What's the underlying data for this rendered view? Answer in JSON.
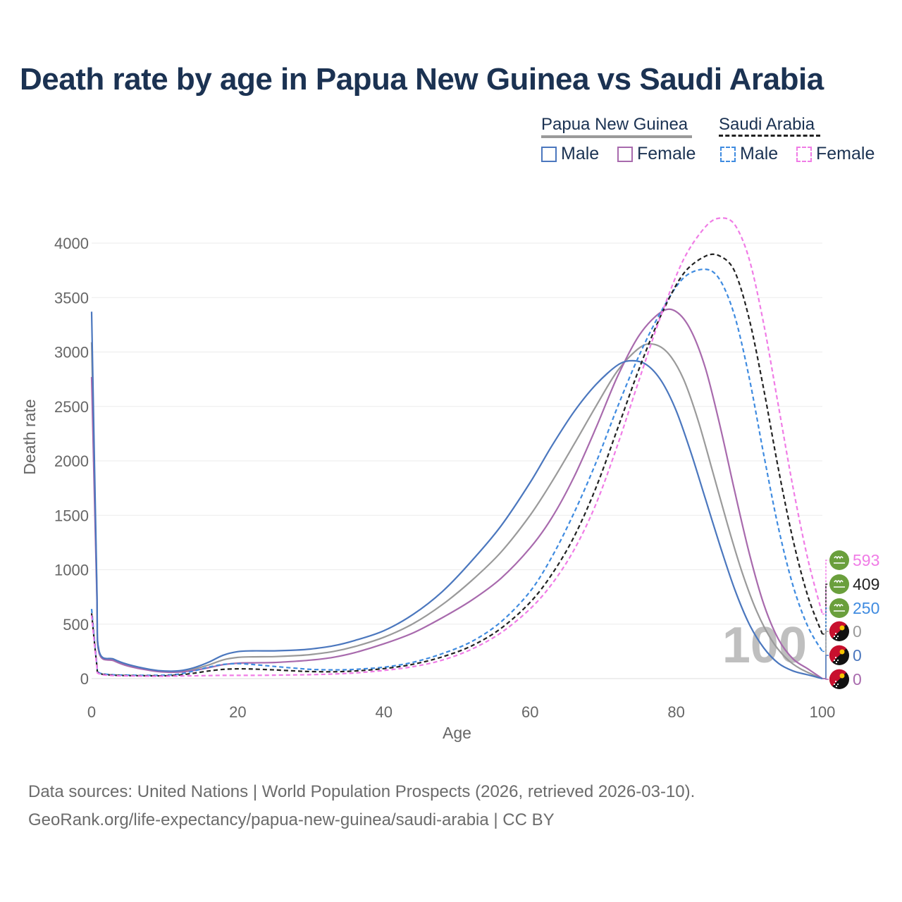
{
  "title": "Death rate by age in Papua New Guinea vs Saudi Arabia",
  "legend": {
    "groups": [
      {
        "label": "Papua New Guinea",
        "bar_color": "#9a9a9a",
        "bar_style": "solid",
        "items": [
          {
            "label": "Male",
            "color": "#4b77be",
            "style": "solid"
          },
          {
            "label": "Female",
            "color": "#a86aad",
            "style": "solid"
          }
        ]
      },
      {
        "label": "Saudi Arabia",
        "bar_color": "#222222",
        "bar_style": "dashed",
        "items": [
          {
            "label": "Male",
            "color": "#3f8be0",
            "style": "dashed"
          },
          {
            "label": "Female",
            "color": "#f07ce6",
            "style": "dashed"
          }
        ]
      }
    ]
  },
  "chart_data": {
    "type": "line",
    "title": "Death rate by age in Papua New Guinea vs Saudi Arabia",
    "xlabel": "Age",
    "ylabel": "Death rate",
    "xlim": [
      0,
      100
    ],
    "ylim": [
      0,
      4300
    ],
    "x_ticks": [
      0,
      20,
      40,
      60,
      80,
      100
    ],
    "y_ticks": [
      0,
      500,
      1000,
      1500,
      2000,
      2500,
      3000,
      3500,
      4000
    ],
    "grid": true,
    "annotation_age": "100",
    "series": [
      {
        "name": "Papua New Guinea Male",
        "color": "#4b77be",
        "dash": "solid",
        "points": [
          [
            0,
            3370
          ],
          [
            0.7,
            900
          ],
          [
            1,
            260
          ],
          [
            3,
            180
          ],
          [
            5,
            130
          ],
          [
            8,
            85
          ],
          [
            10,
            70
          ],
          [
            12,
            72
          ],
          [
            14,
            100
          ],
          [
            16,
            150
          ],
          [
            18,
            215
          ],
          [
            20,
            248
          ],
          [
            22,
            255
          ],
          [
            25,
            255
          ],
          [
            28,
            262
          ],
          [
            30,
            272
          ],
          [
            33,
            300
          ],
          [
            36,
            350
          ],
          [
            40,
            440
          ],
          [
            44,
            590
          ],
          [
            48,
            800
          ],
          [
            52,
            1080
          ],
          [
            56,
            1400
          ],
          [
            60,
            1800
          ],
          [
            63,
            2140
          ],
          [
            66,
            2450
          ],
          [
            69,
            2700
          ],
          [
            72,
            2880
          ],
          [
            74,
            2920
          ],
          [
            76,
            2880
          ],
          [
            78,
            2730
          ],
          [
            80,
            2460
          ],
          [
            82,
            2080
          ],
          [
            84,
            1650
          ],
          [
            86,
            1220
          ],
          [
            88,
            820
          ],
          [
            90,
            500
          ],
          [
            92,
            280
          ],
          [
            94,
            140
          ],
          [
            96,
            70
          ],
          [
            98,
            35
          ],
          [
            100,
            0
          ]
        ],
        "end_label": "0",
        "end_flag": "Papua New Guinea"
      },
      {
        "name": "Papua New Guinea Female",
        "color": "#a86aad",
        "dash": "solid",
        "points": [
          [
            0,
            2770
          ],
          [
            0.7,
            800
          ],
          [
            1,
            240
          ],
          [
            3,
            165
          ],
          [
            5,
            115
          ],
          [
            8,
            75
          ],
          [
            10,
            60
          ],
          [
            12,
            60
          ],
          [
            14,
            75
          ],
          [
            16,
            100
          ],
          [
            18,
            128
          ],
          [
            20,
            142
          ],
          [
            22,
            145
          ],
          [
            25,
            148
          ],
          [
            28,
            160
          ],
          [
            30,
            170
          ],
          [
            33,
            195
          ],
          [
            36,
            238
          ],
          [
            40,
            320
          ],
          [
            44,
            420
          ],
          [
            48,
            560
          ],
          [
            52,
            720
          ],
          [
            56,
            920
          ],
          [
            60,
            1200
          ],
          [
            63,
            1480
          ],
          [
            66,
            1850
          ],
          [
            69,
            2300
          ],
          [
            72,
            2780
          ],
          [
            75,
            3160
          ],
          [
            78,
            3370
          ],
          [
            80,
            3370
          ],
          [
            82,
            3200
          ],
          [
            84,
            2850
          ],
          [
            86,
            2320
          ],
          [
            88,
            1720
          ],
          [
            90,
            1150
          ],
          [
            92,
            680
          ],
          [
            94,
            360
          ],
          [
            96,
            180
          ],
          [
            98,
            90
          ],
          [
            100,
            0
          ]
        ],
        "end_label": "0",
        "end_flag": "Papua New Guinea"
      },
      {
        "name": "Papua New Guinea Total",
        "color": "#9a9a9a",
        "dash": "solid",
        "points": [
          [
            0,
            3090
          ],
          [
            0.7,
            850
          ],
          [
            1,
            250
          ],
          [
            3,
            172
          ],
          [
            5,
            122
          ],
          [
            8,
            80
          ],
          [
            10,
            65
          ],
          [
            12,
            66
          ],
          [
            14,
            88
          ],
          [
            16,
            125
          ],
          [
            18,
            172
          ],
          [
            20,
            195
          ],
          [
            22,
            200
          ],
          [
            25,
            202
          ],
          [
            28,
            211
          ],
          [
            30,
            221
          ],
          [
            33,
            248
          ],
          [
            36,
            294
          ],
          [
            40,
            380
          ],
          [
            44,
            505
          ],
          [
            48,
            680
          ],
          [
            52,
            900
          ],
          [
            56,
            1160
          ],
          [
            60,
            1500
          ],
          [
            63,
            1810
          ],
          [
            66,
            2150
          ],
          [
            69,
            2500
          ],
          [
            72,
            2830
          ],
          [
            75,
            3040
          ],
          [
            77,
            3070
          ],
          [
            79,
            2980
          ],
          [
            81,
            2750
          ],
          [
            83,
            2370
          ],
          [
            85,
            1900
          ],
          [
            87,
            1420
          ],
          [
            89,
            980
          ],
          [
            91,
            620
          ],
          [
            93,
            360
          ],
          [
            95,
            190
          ],
          [
            97,
            90
          ],
          [
            100,
            0
          ]
        ],
        "end_label": "0",
        "end_flag": "Papua New Guinea"
      },
      {
        "name": "Saudi Arabia Male",
        "color": "#3f8be0",
        "dash": "dashed",
        "points": [
          [
            0,
            640
          ],
          [
            0.7,
            140
          ],
          [
            1,
            55
          ],
          [
            3,
            35
          ],
          [
            5,
            32
          ],
          [
            8,
            30
          ],
          [
            10,
            32
          ],
          [
            12,
            42
          ],
          [
            14,
            70
          ],
          [
            16,
            105
          ],
          [
            18,
            130
          ],
          [
            20,
            138
          ],
          [
            22,
            130
          ],
          [
            25,
            112
          ],
          [
            28,
            95
          ],
          [
            30,
            85
          ],
          [
            33,
            80
          ],
          [
            36,
            85
          ],
          [
            40,
            105
          ],
          [
            44,
            150
          ],
          [
            48,
            230
          ],
          [
            52,
            340
          ],
          [
            56,
            520
          ],
          [
            60,
            800
          ],
          [
            63,
            1120
          ],
          [
            66,
            1520
          ],
          [
            69,
            1980
          ],
          [
            72,
            2500
          ],
          [
            75,
            2980
          ],
          [
            78,
            3380
          ],
          [
            81,
            3680
          ],
          [
            84,
            3760
          ],
          [
            86,
            3660
          ],
          [
            88,
            3330
          ],
          [
            90,
            2760
          ],
          [
            92,
            2050
          ],
          [
            94,
            1380
          ],
          [
            96,
            850
          ],
          [
            98,
            480
          ],
          [
            100,
            250
          ]
        ],
        "end_label": "250",
        "end_flag": "Saudi Arabia"
      },
      {
        "name": "Saudi Arabia Female",
        "color": "#f07ce6",
        "dash": "dashed",
        "points": [
          [
            0,
            580
          ],
          [
            0.7,
            120
          ],
          [
            1,
            45
          ],
          [
            3,
            28
          ],
          [
            5,
            25
          ],
          [
            8,
            22
          ],
          [
            10,
            22
          ],
          [
            12,
            24
          ],
          [
            14,
            26
          ],
          [
            16,
            28
          ],
          [
            18,
            30
          ],
          [
            20,
            30
          ],
          [
            22,
            30
          ],
          [
            25,
            32
          ],
          [
            28,
            34
          ],
          [
            30,
            36
          ],
          [
            33,
            42
          ],
          [
            36,
            52
          ],
          [
            40,
            75
          ],
          [
            44,
            110
          ],
          [
            48,
            170
          ],
          [
            52,
            270
          ],
          [
            56,
            420
          ],
          [
            60,
            640
          ],
          [
            63,
            870
          ],
          [
            66,
            1180
          ],
          [
            69,
            1600
          ],
          [
            72,
            2150
          ],
          [
            75,
            2760
          ],
          [
            78,
            3350
          ],
          [
            81,
            3850
          ],
          [
            84,
            4150
          ],
          [
            86,
            4230
          ],
          [
            88,
            4170
          ],
          [
            90,
            3850
          ],
          [
            92,
            3250
          ],
          [
            94,
            2500
          ],
          [
            96,
            1750
          ],
          [
            98,
            1100
          ],
          [
            100,
            593
          ]
        ],
        "end_label": "593",
        "end_flag": "Saudi Arabia"
      },
      {
        "name": "Saudi Arabia Total",
        "color": "#222222",
        "dash": "dashed",
        "points": [
          [
            0,
            600
          ],
          [
            0.7,
            130
          ],
          [
            1,
            50
          ],
          [
            3,
            32
          ],
          [
            5,
            28
          ],
          [
            8,
            26
          ],
          [
            10,
            26
          ],
          [
            12,
            33
          ],
          [
            14,
            50
          ],
          [
            16,
            70
          ],
          [
            18,
            85
          ],
          [
            20,
            90
          ],
          [
            22,
            88
          ],
          [
            25,
            80
          ],
          [
            28,
            70
          ],
          [
            30,
            65
          ],
          [
            33,
            63
          ],
          [
            36,
            70
          ],
          [
            40,
            92
          ],
          [
            44,
            132
          ],
          [
            48,
            200
          ],
          [
            52,
            300
          ],
          [
            56,
            460
          ],
          [
            60,
            700
          ],
          [
            63,
            960
          ],
          [
            66,
            1300
          ],
          [
            69,
            1750
          ],
          [
            72,
            2300
          ],
          [
            75,
            2860
          ],
          [
            78,
            3350
          ],
          [
            81,
            3720
          ],
          [
            84,
            3880
          ],
          [
            86,
            3880
          ],
          [
            88,
            3740
          ],
          [
            90,
            3300
          ],
          [
            92,
            2650
          ],
          [
            94,
            1920
          ],
          [
            96,
            1270
          ],
          [
            98,
            760
          ],
          [
            100,
            409
          ]
        ],
        "end_label": "409",
        "end_flag": "Saudi Arabia"
      }
    ]
  },
  "source": {
    "line1": "Data sources: United Nations | World Population Prospects (2026, retrieved 2026-03-10).",
    "line2": "GeoRank.org/life-expectancy/papua-new-guinea/saudi-arabia | CC BY"
  }
}
